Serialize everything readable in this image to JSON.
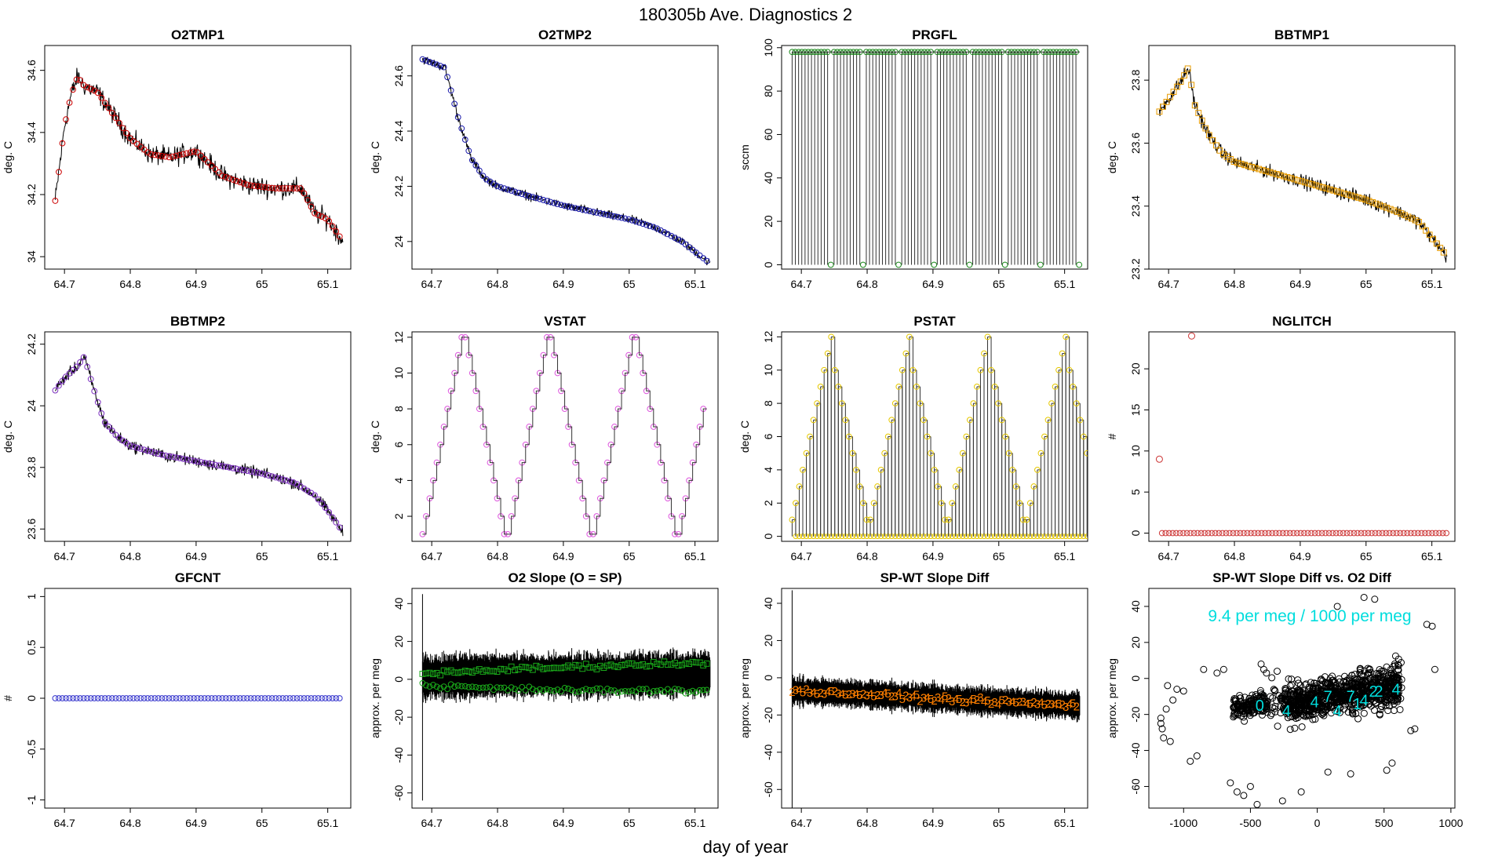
{
  "figure": {
    "title": "180305b   Ave. Diagnostics 2",
    "xlabel": "day of year"
  },
  "chart_data": [
    {
      "id": "o2tmp1",
      "type": "line",
      "title": "O2TMP1",
      "ylabel": "deg. C",
      "xlim": [
        64.67,
        65.135
      ],
      "xticks": [
        64.7,
        64.8,
        64.9,
        65.0,
        65.1
      ],
      "ylim": [
        33.96,
        34.68
      ],
      "yticks": [
        34.0,
        34.2,
        34.4,
        34.6
      ],
      "marker": "circle",
      "marker_color": "#cc0000",
      "x": [
        64.686,
        64.7,
        64.71,
        64.72,
        64.73,
        64.75,
        64.77,
        64.8,
        64.83,
        64.86,
        64.9,
        64.94,
        64.98,
        65.02,
        65.06,
        65.08,
        65.1,
        65.123
      ],
      "y": [
        34.18,
        34.42,
        34.52,
        34.58,
        34.55,
        34.53,
        34.47,
        34.38,
        34.33,
        34.32,
        34.34,
        34.26,
        34.23,
        34.22,
        34.22,
        34.14,
        34.12,
        34.05
      ],
      "noise": 0.05
    },
    {
      "id": "o2tmp2",
      "type": "line",
      "title": "O2TMP2",
      "ylabel": "deg. C",
      "xlim": [
        64.67,
        65.135
      ],
      "xticks": [
        64.7,
        64.8,
        64.9,
        65.0,
        65.1
      ],
      "ylim": [
        23.9,
        24.71
      ],
      "yticks": [
        24.0,
        24.2,
        24.4,
        24.6
      ],
      "marker": "circle",
      "marker_color": "#1a1aaa",
      "x": [
        64.686,
        64.72,
        64.74,
        64.76,
        64.78,
        64.8,
        64.84,
        64.9,
        64.96,
        65.0,
        65.04,
        65.08,
        65.123
      ],
      "y": [
        24.66,
        24.63,
        24.45,
        24.3,
        24.23,
        24.2,
        24.17,
        24.13,
        24.1,
        24.08,
        24.05,
        24.0,
        23.92
      ],
      "noise": 0.025
    },
    {
      "id": "prgfl",
      "type": "spike",
      "title": "PRGFL",
      "ylabel": "sccm",
      "xlim": [
        64.67,
        65.135
      ],
      "xticks": [
        64.7,
        64.8,
        64.9,
        65.0,
        65.1
      ],
      "ylim": [
        -2,
        101
      ],
      "yticks": [
        0,
        20,
        40,
        60,
        80,
        100
      ],
      "marker": "circle",
      "marker_color": "#1a8a1a",
      "spike_value": 98,
      "base_value": 0,
      "x_start": 64.686,
      "x_end": 65.123,
      "gap_x": [
        64.744,
        64.796,
        64.848,
        64.9,
        64.956,
        65.01,
        65.062,
        65.123
      ]
    },
    {
      "id": "bbtmp1",
      "type": "line",
      "title": "BBTMP1",
      "ylabel": "deg. C",
      "xlim": [
        64.67,
        65.135
      ],
      "xticks": [
        64.7,
        64.8,
        64.9,
        65.0,
        65.1
      ],
      "ylim": [
        23.2,
        23.91
      ],
      "yticks": [
        23.2,
        23.4,
        23.6,
        23.8
      ],
      "marker": "square",
      "marker_color": "#e69a00",
      "x": [
        64.686,
        64.7,
        64.72,
        64.73,
        64.74,
        64.76,
        64.78,
        64.8,
        64.85,
        64.9,
        64.95,
        65.0,
        65.05,
        65.08,
        65.1,
        65.123
      ],
      "y": [
        23.7,
        23.74,
        23.8,
        23.84,
        23.72,
        23.63,
        23.57,
        23.54,
        23.51,
        23.48,
        23.45,
        23.42,
        23.38,
        23.35,
        23.3,
        23.24
      ],
      "noise": 0.035
    },
    {
      "id": "bbtmp2",
      "type": "line",
      "title": "BBTMP2",
      "ylabel": "deg. C",
      "xlim": [
        64.67,
        65.135
      ],
      "xticks": [
        64.7,
        64.8,
        64.9,
        65.0,
        65.1
      ],
      "ylim": [
        23.56,
        24.24
      ],
      "yticks": [
        23.6,
        23.8,
        24.0,
        24.2
      ],
      "marker": "circle",
      "marker_color": "#7b2fbf",
      "x": [
        64.686,
        64.7,
        64.72,
        64.73,
        64.745,
        64.76,
        64.78,
        64.8,
        64.85,
        64.9,
        64.95,
        65.0,
        65.05,
        65.08,
        65.1,
        65.123
      ],
      "y": [
        24.05,
        24.09,
        24.13,
        24.16,
        24.05,
        23.95,
        23.9,
        23.87,
        23.84,
        23.82,
        23.8,
        23.78,
        23.75,
        23.71,
        23.66,
        23.59
      ],
      "noise": 0.03
    },
    {
      "id": "vstat",
      "type": "step",
      "title": "VSTAT",
      "ylabel": "deg. C",
      "xlim": [
        64.67,
        65.135
      ],
      "xticks": [
        64.7,
        64.8,
        64.9,
        65.0,
        65.1
      ],
      "ylim": [
        0.6,
        12.3
      ],
      "yticks": [
        2,
        4,
        6,
        8,
        10,
        12
      ],
      "marker": "circle",
      "marker_color": "#dd55dd",
      "x_start": 64.686,
      "x_step": 0.0054,
      "pattern": [
        1,
        2,
        3,
        4,
        5,
        6,
        7,
        8,
        9,
        10,
        11,
        12,
        12,
        11,
        10,
        9,
        8,
        7,
        6,
        5,
        4,
        3,
        2,
        1
      ],
      "cycles": 3.35
    },
    {
      "id": "pstat",
      "type": "spikestep",
      "title": "PSTAT",
      "ylabel": "deg. C",
      "xlim": [
        64.67,
        65.135
      ],
      "xticks": [
        64.7,
        64.8,
        64.9,
        65.0,
        65.1
      ],
      "ylim": [
        -0.3,
        12.3
      ],
      "yticks": [
        0,
        2,
        4,
        6,
        8,
        10,
        12
      ],
      "marker": "circle",
      "marker_color": "#e6c800",
      "x_start": 64.686,
      "x_step": 0.0054,
      "pattern": [
        1,
        2,
        3,
        4,
        5,
        6,
        7,
        8,
        9,
        10,
        11,
        12,
        10,
        9,
        8,
        7,
        6,
        5,
        4,
        3,
        2,
        1
      ],
      "cycles": 4
    },
    {
      "id": "nglitch",
      "type": "scatter",
      "title": "NGLITCH",
      "ylabel": "#",
      "xlim": [
        64.67,
        65.135
      ],
      "xticks": [
        64.7,
        64.8,
        64.9,
        65.0,
        65.1
      ],
      "ylim": [
        -1,
        24.5
      ],
      "yticks": [
        0,
        5,
        10,
        15,
        20
      ],
      "marker": "circle",
      "marker_color": "#cc3333",
      "x": [
        64.686,
        64.735
      ],
      "y": [
        9,
        24
      ],
      "baseline_value": 0,
      "baseline_from": 64.69,
      "baseline_to": 65.123,
      "baseline_step": 0.0054
    },
    {
      "id": "gfcnt",
      "type": "scatter",
      "title": "GFCNT",
      "ylabel": "#",
      "xlim": [
        64.67,
        65.135
      ],
      "xticks": [
        64.7,
        64.8,
        64.9,
        65.0,
        65.1
      ],
      "ylim": [
        -1.08,
        1.08
      ],
      "yticks": [
        -1.0,
        -0.5,
        0.0,
        0.5,
        1.0
      ],
      "marker": "circle",
      "marker_color": "#3333cc",
      "x": [],
      "y": [],
      "baseline_value": 0,
      "baseline_from": 64.686,
      "baseline_to": 65.123,
      "baseline_step": 0.0054
    },
    {
      "id": "o2slope",
      "type": "band",
      "title": "O2 Slope (O = SP)",
      "ylabel": "approx. per meg",
      "xlim": [
        64.67,
        65.135
      ],
      "xticks": [
        64.7,
        64.8,
        64.9,
        65.0,
        65.1
      ],
      "ylim": [
        -68,
        48
      ],
      "yticks": [
        -60,
        -40,
        -20,
        0,
        20,
        40
      ],
      "marker_color": "#1aaa1a",
      "band_x": [
        64.686,
        64.8,
        64.95,
        65.123
      ],
      "band_center": [
        1,
        2,
        2,
        3
      ],
      "band_half_width": 7,
      "noise": 5,
      "spike": {
        "x": 64.686,
        "low": -64,
        "high": 45
      },
      "series": [
        {
          "name": "SP",
          "marker": "square",
          "x": [
            64.686,
            64.8,
            64.95,
            65.123
          ],
          "y": [
            3,
            5,
            7,
            9
          ]
        },
        {
          "name": "O",
          "marker": "circle",
          "x": [
            64.686,
            64.8,
            64.95,
            65.123
          ],
          "y": [
            -3,
            -5,
            -6,
            -6
          ]
        }
      ]
    },
    {
      "id": "spwt",
      "type": "band",
      "title": "SP-WT Slope Diff",
      "ylabel": "approx. per meg",
      "xlim": [
        64.67,
        65.135
      ],
      "xticks": [
        64.7,
        64.8,
        64.9,
        65.0,
        65.1
      ],
      "ylim": [
        -70,
        48
      ],
      "yticks": [
        -60,
        -40,
        -20,
        0,
        20,
        40
      ],
      "marker_color": "#ff7f00",
      "band_x": [
        64.686,
        64.8,
        64.95,
        65.123
      ],
      "band_center": [
        -7,
        -9,
        -12,
        -15
      ],
      "band_half_width": 4,
      "noise": 4,
      "spike": {
        "x": 64.686,
        "low": -70,
        "high": 47
      },
      "series": [
        {
          "name": "SP-WT",
          "marker": "digit",
          "x": [
            64.686,
            64.8,
            64.95,
            65.123
          ],
          "y": [
            -7,
            -9,
            -12,
            -15
          ]
        }
      ]
    },
    {
      "id": "scatter",
      "type": "xyscatter",
      "title": "SP-WT Slope Diff vs. O2 Diff",
      "ylabel": "approx. per meg",
      "annotation": "9.4 per meg / 1000 per meg",
      "xlim": [
        -1260,
        1030
      ],
      "xticks": [
        -1000,
        -500,
        0,
        500,
        1000
      ],
      "ylim": [
        -72,
        50
      ],
      "yticks": [
        -60,
        -40,
        -20,
        0,
        20,
        40
      ],
      "marker": "circle",
      "marker_color": "#000000",
      "highlight_color": "#00dddd",
      "x": [
        -1170,
        -1150,
        -1130,
        -1100,
        -1050,
        -1000,
        -950,
        -900,
        -850,
        -750,
        -700,
        -650,
        -600,
        -550,
        -500,
        -450,
        -420,
        -400,
        -380,
        -300,
        -260,
        -120,
        80,
        150,
        250,
        350,
        430,
        520,
        560,
        700,
        730,
        820,
        860,
        880,
        -1120,
        -1080,
        -1170,
        -1160
      ],
      "y": [
        -25,
        -33,
        -17,
        -35,
        -6,
        -7,
        -46,
        -43,
        5,
        3,
        5,
        -58,
        -63,
        -65,
        -60,
        -70,
        8,
        5,
        3,
        4,
        -68,
        -63,
        -52,
        40,
        -53,
        45,
        44,
        -51,
        -47,
        -29,
        -28,
        30,
        29,
        5,
        -4,
        -12,
        -22,
        -28
      ],
      "cloud": [
        {
          "x0": -630,
          "x1": -370,
          "y0": -25,
          "y1": -5,
          "n": 170
        },
        {
          "x0": -250,
          "x1": 610,
          "y0": -25,
          "y1": 7,
          "n": 700
        },
        {
          "x0": -360,
          "x1": 640,
          "y0": -32,
          "y1": 15,
          "n": 260
        }
      ],
      "labels": [
        {
          "text": "0",
          "x": -430,
          "y": -15
        },
        {
          "text": "4",
          "x": -230,
          "y": -18
        },
        {
          "text": "4",
          "x": -20,
          "y": -13
        },
        {
          "text": "7",
          "x": 80,
          "y": -10
        },
        {
          "text": "4",
          "x": 150,
          "y": -18
        },
        {
          "text": "7",
          "x": 250,
          "y": -10
        },
        {
          "text": "1",
          "x": 300,
          "y": -14
        },
        {
          "text": "4",
          "x": 350,
          "y": -12
        },
        {
          "text": "2",
          "x": 420,
          "y": -7
        },
        {
          "text": "2",
          "x": 460,
          "y": -7
        },
        {
          "text": "4",
          "x": 590,
          "y": -6
        }
      ]
    }
  ]
}
